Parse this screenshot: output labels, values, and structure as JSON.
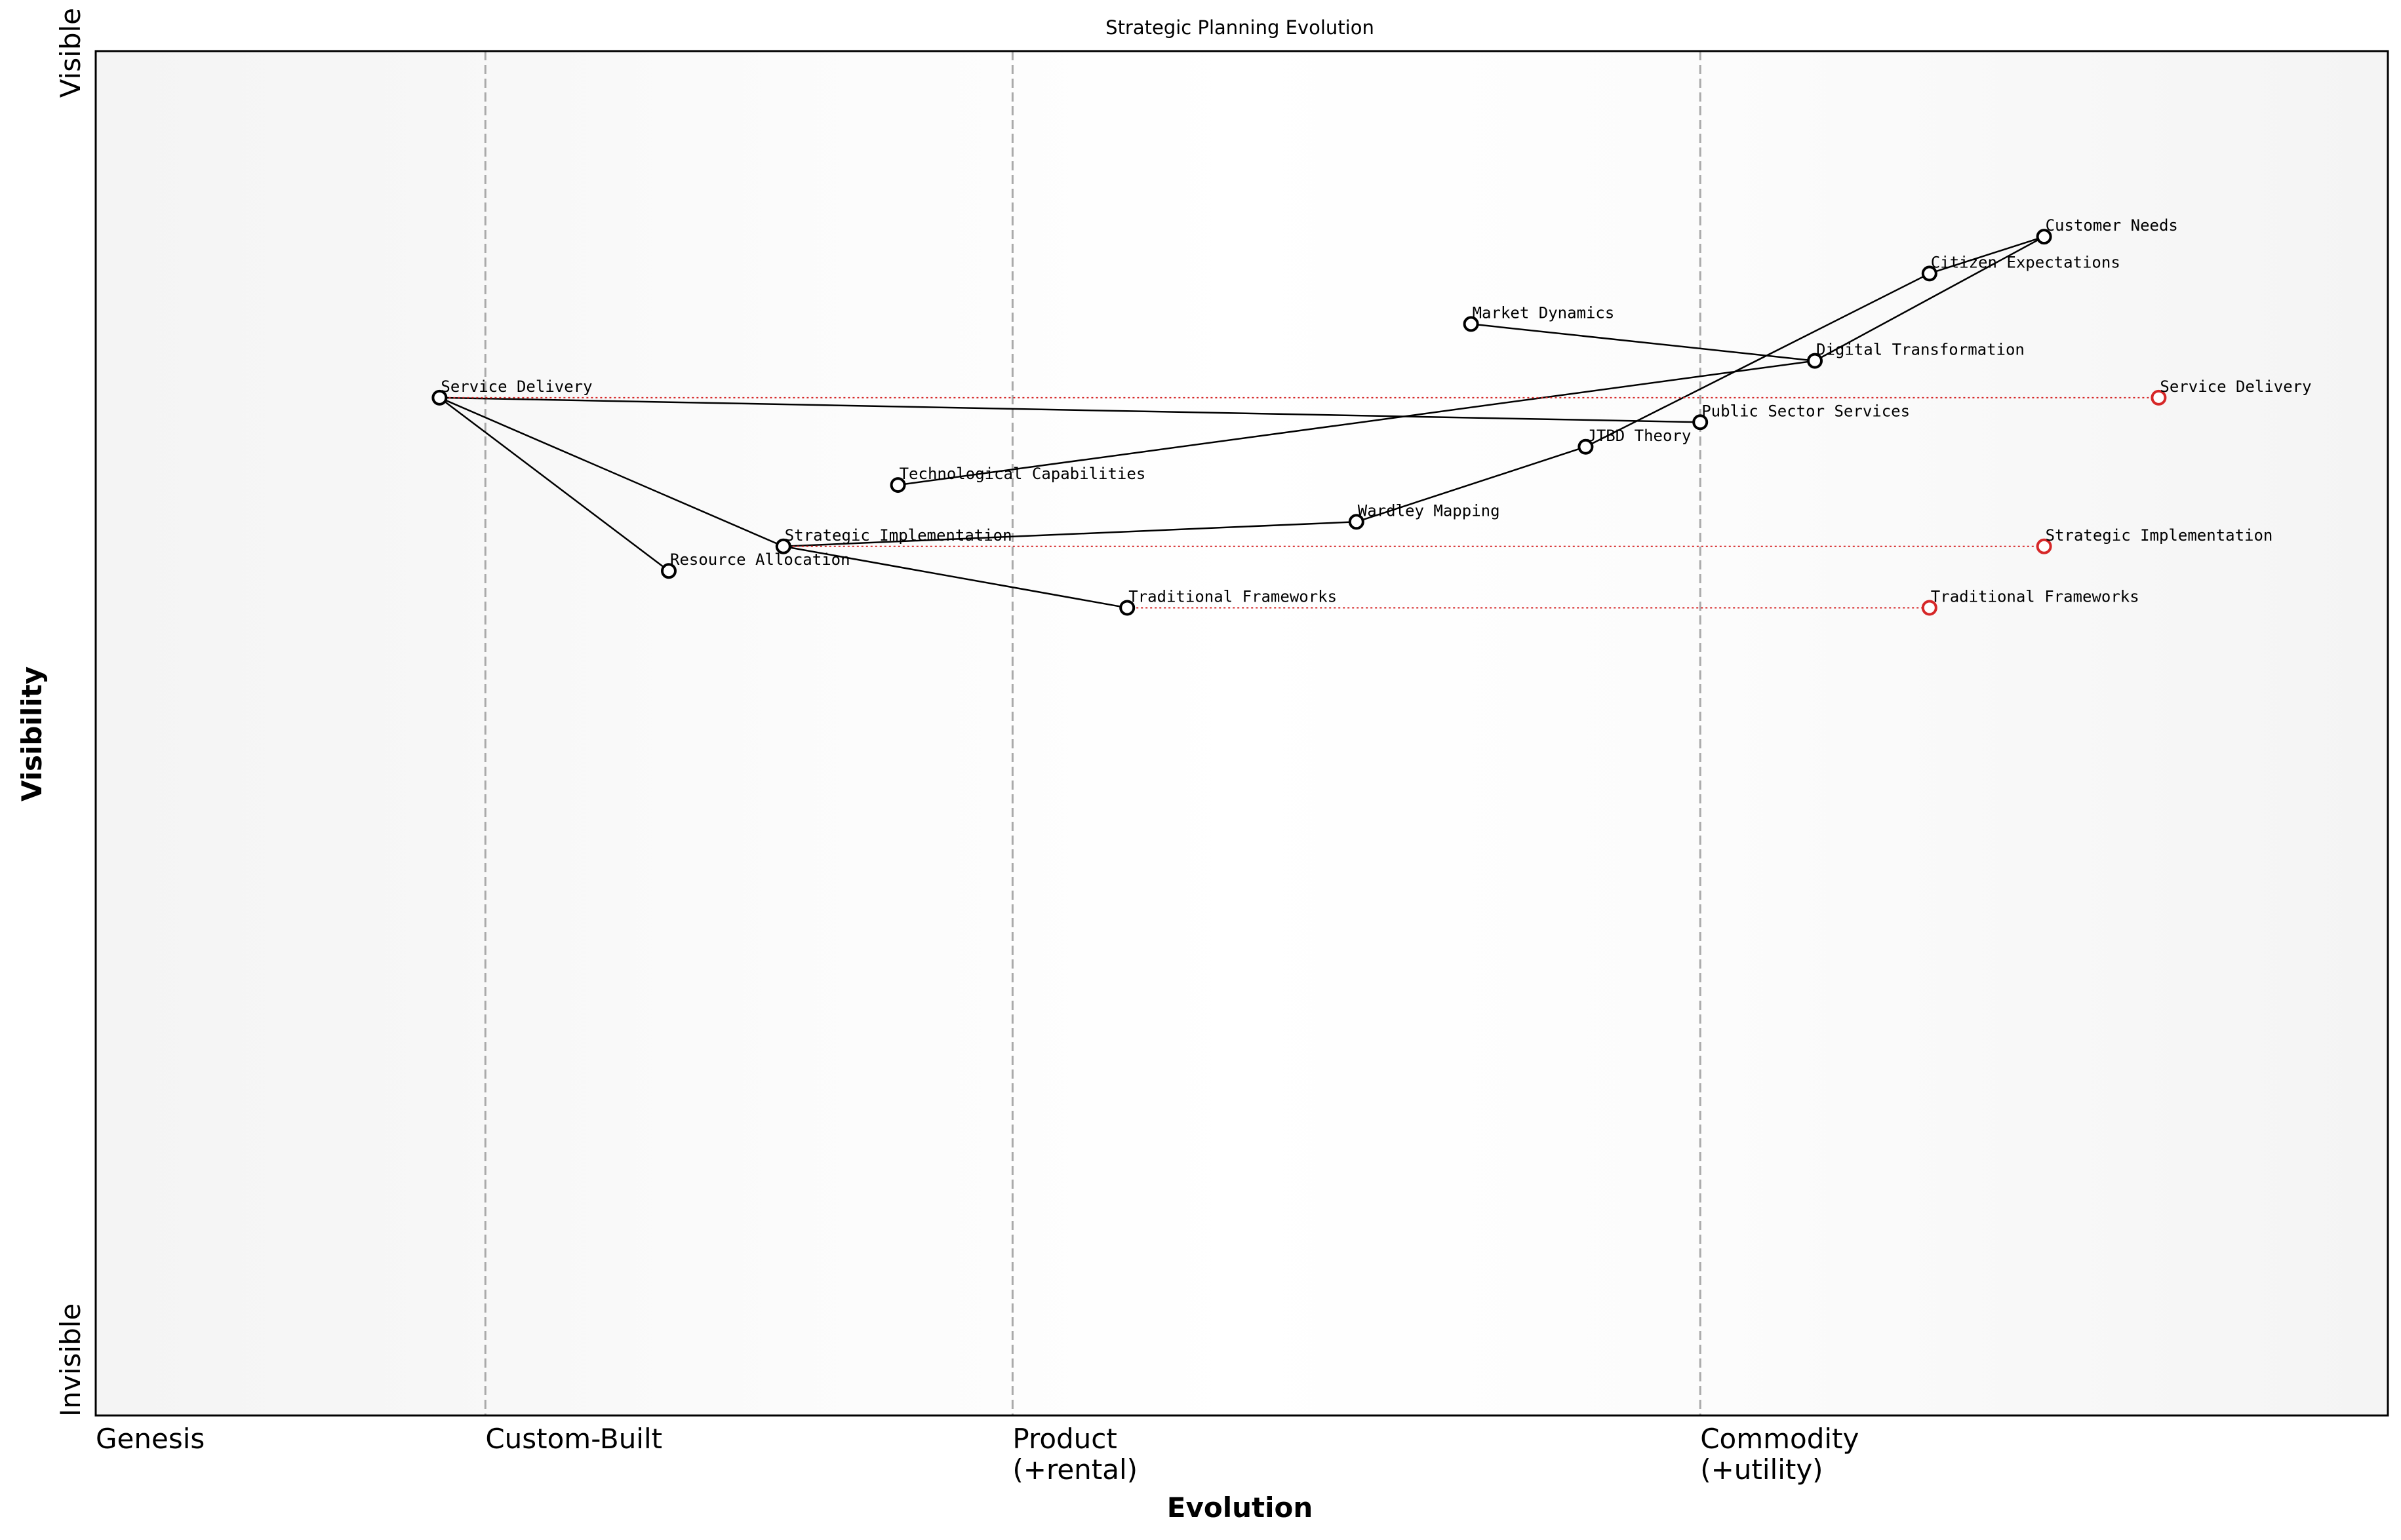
{
  "chart_data": {
    "type": "wardley-map",
    "title": "Strategic Planning Evolution",
    "xlabel": "Evolution",
    "ylabel": "Visibility",
    "xlim": [
      0,
      1
    ],
    "ylim": [
      0,
      1
    ],
    "grid": false,
    "stages": [
      {
        "label": "Genesis",
        "x": 0.0
      },
      {
        "label": "Custom-Built",
        "x": 0.17
      },
      {
        "label": "Product",
        "label2": "(+rental)",
        "x": 0.4
      },
      {
        "label": "Commodity",
        "label2": "(+utility)",
        "x": 0.7
      }
    ],
    "y_labels": {
      "top": "Visible",
      "bottom": "Invisible"
    },
    "components": [
      {
        "id": "customer-needs",
        "name": "Customer Needs",
        "evolution": 0.85,
        "visibility": 0.864
      },
      {
        "id": "citizen-expectations",
        "name": "Citizen Expectations",
        "evolution": 0.8,
        "visibility": 0.837
      },
      {
        "id": "market-dynamics",
        "name": "Market Dynamics",
        "evolution": 0.6,
        "visibility": 0.8
      },
      {
        "id": "digital-transformation",
        "name": "Digital Transformation",
        "evolution": 0.75,
        "visibility": 0.773
      },
      {
        "id": "service-delivery",
        "name": "Service Delivery",
        "evolution": 0.15,
        "visibility": 0.746
      },
      {
        "id": "public-sector-services",
        "name": "Public Sector Services",
        "evolution": 0.7,
        "visibility": 0.728
      },
      {
        "id": "jtbd-theory",
        "name": "JTBD Theory",
        "evolution": 0.65,
        "visibility": 0.71
      },
      {
        "id": "technological-capabilities",
        "name": "Technological Capabilities",
        "evolution": 0.35,
        "visibility": 0.682
      },
      {
        "id": "wardley-mapping",
        "name": "Wardley Mapping",
        "evolution": 0.55,
        "visibility": 0.655
      },
      {
        "id": "strategic-implementation",
        "name": "Strategic Implementation",
        "evolution": 0.3,
        "visibility": 0.637
      },
      {
        "id": "resource-allocation",
        "name": "Resource Allocation",
        "evolution": 0.25,
        "visibility": 0.619
      },
      {
        "id": "traditional-frameworks",
        "name": "Traditional Frameworks",
        "evolution": 0.45,
        "visibility": 0.592
      }
    ],
    "links": [
      [
        "customer-needs",
        "citizen-expectations"
      ],
      [
        "customer-needs",
        "digital-transformation"
      ],
      [
        "citizen-expectations",
        "jtbd-theory"
      ],
      [
        "market-dynamics",
        "digital-transformation"
      ],
      [
        "digital-transformation",
        "technological-capabilities"
      ],
      [
        "service-delivery",
        "public-sector-services"
      ],
      [
        "service-delivery",
        "resource-allocation"
      ],
      [
        "service-delivery",
        "strategic-implementation"
      ],
      [
        "jtbd-theory",
        "wardley-mapping"
      ],
      [
        "wardley-mapping",
        "strategic-implementation"
      ],
      [
        "strategic-implementation",
        "traditional-frameworks"
      ]
    ],
    "evolutions": [
      {
        "id": "service-delivery-future",
        "name": "Service Delivery",
        "from": "service-delivery",
        "evolution": 0.9,
        "visibility": 0.746
      },
      {
        "id": "strategic-implementation-future",
        "name": "Strategic Implementation",
        "from": "strategic-implementation",
        "evolution": 0.85,
        "visibility": 0.637
      },
      {
        "id": "traditional-frameworks-future",
        "name": "Traditional Frameworks",
        "from": "traditional-frameworks",
        "evolution": 0.8,
        "visibility": 0.592
      }
    ],
    "colors": {
      "node": "#000000",
      "evolved_node": "#d62728",
      "evolution_line": "#d62728",
      "link": "#000000",
      "stage_divider": "#aaaaaa",
      "background_edge": "#f4f4f4",
      "background_center": "#ffffff"
    }
  }
}
